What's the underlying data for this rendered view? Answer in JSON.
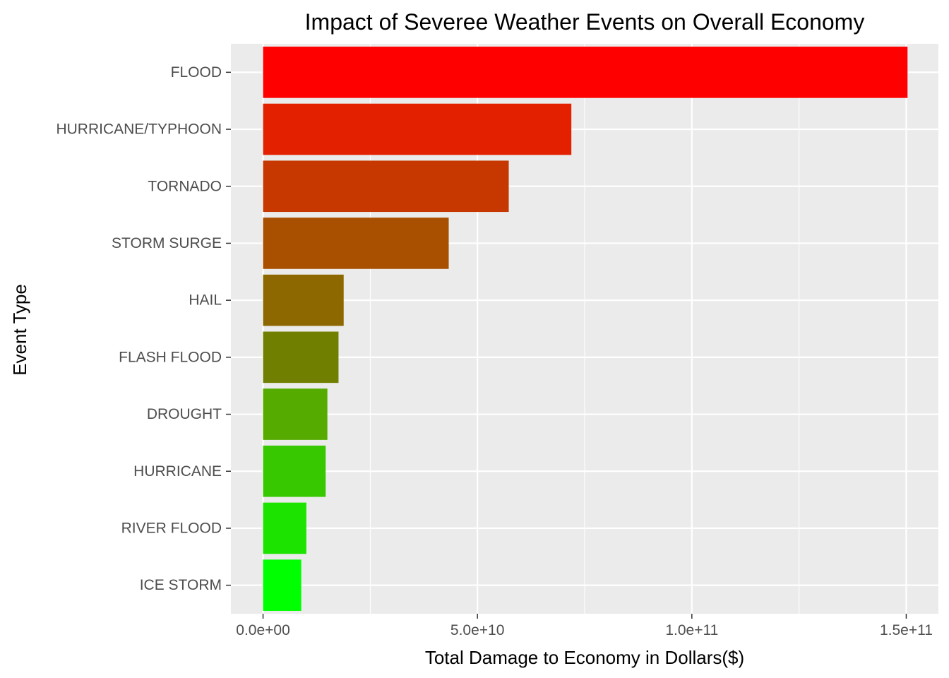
{
  "chart_data": {
    "type": "bar",
    "orientation": "horizontal",
    "title": "Impact of Severee Weather Events on Overall Economy",
    "xlabel": "Total Damage to Economy in Dollars($)",
    "ylabel": "Event Type",
    "xlim": [
      -7500000000,
      157500000000
    ],
    "x_ticks": [
      0,
      50000000000,
      100000000000,
      150000000000
    ],
    "x_tick_labels": [
      "0.0e+00",
      "5.0e+10",
      "1.0e+11",
      "1.5e+11"
    ],
    "categories": [
      "FLOOD",
      "HURRICANE/TYPHOON",
      "TORNADO",
      "STORM SURGE",
      "HAIL",
      "FLASH FLOOD",
      "DROUGHT",
      "HURRICANE",
      "RIVER FLOOD",
      "ICE STORM"
    ],
    "values": [
      150300000000,
      71900000000,
      57300000000,
      43300000000,
      18800000000,
      17600000000,
      15000000000,
      14600000000,
      10100000000,
      8900000000
    ],
    "colors": [
      "#FF0000",
      "#E32100",
      "#C63800",
      "#A95000",
      "#8D6700",
      "#717F00",
      "#55AB00",
      "#38C800",
      "#1CE300",
      "#00FF00"
    ],
    "panel_background": "#EBEBEB",
    "grid": true,
    "grid_color": "#FFFFFF",
    "legend": "none"
  }
}
